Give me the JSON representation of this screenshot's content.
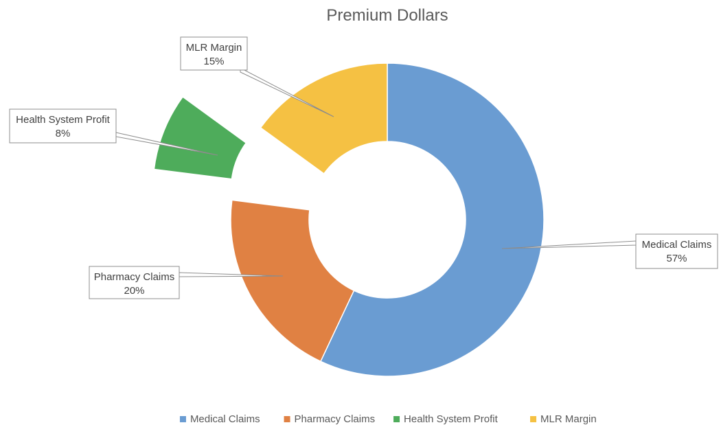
{
  "chart_data": {
    "type": "pie",
    "variant": "donut",
    "title": "Premium Dollars",
    "categories": [
      "Medical Claims",
      "Pharmacy Claims",
      "Health System Profit",
      "MLR Margin"
    ],
    "values": [
      57,
      20,
      8,
      15
    ],
    "data_labels": [
      "57%",
      "20%",
      "8%",
      "15%"
    ],
    "colors": [
      "#6A9CD2",
      "#E08143",
      "#4EAC5B",
      "#F5C143"
    ],
    "exploded": [
      false,
      false,
      true,
      false
    ],
    "legend": {
      "position": "bottom",
      "entries": [
        "Medical Claims",
        "Pharmacy Claims",
        "Health System Profit",
        "MLR Margin"
      ]
    }
  }
}
